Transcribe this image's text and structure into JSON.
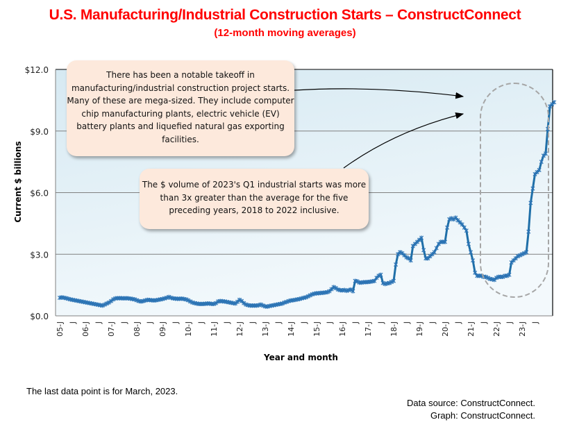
{
  "title": "U.S. Manufacturing/Industrial Construction Starts – ConstructConnect",
  "subtitle": "(12-month moving averages)",
  "note": "The last data point is for March, 2023.",
  "source_line1": "Data source: ConstructConnect.",
  "source_line2": "Graph: ConstructConnect.",
  "callouts": {
    "takeoff": "There has been a notable takeoff in manufacturing/industrial construction project starts. Many of these are mega-sized. They include computer chip manufacturing plants, electric vehicle (EV) battery plants and liquefied natural gas exporting facilities.",
    "q1": "The $ volume of 2023's Q1 industrial starts was more than 3x greater than the average for the five preceding years, 2018 to 2022 inclusive."
  },
  "colors": {
    "title": "#ff0000",
    "series": "#2e75b6",
    "callout_bg": "#fde9dc",
    "plot_bg_top": "#d6e9f2",
    "plot_bg_bottom": "#f3f9fc",
    "highlight_oval": "#a6a6a6"
  },
  "chart_data": {
    "type": "line",
    "title": "U.S. Manufacturing/Industrial Construction Starts – ConstructConnect",
    "subtitle": "(12-month moving averages)",
    "xlabel": "Year and month",
    "ylabel": "Current $ billions",
    "ylim": [
      0,
      12
    ],
    "yticks": [
      "$0.0",
      "$3.0",
      "$6.0",
      "$9.0",
      "$12.0"
    ],
    "ytick_values": [
      0,
      3,
      6,
      9,
      12
    ],
    "grid": "horizontal",
    "x_start": "2005-01",
    "x_end": "2023-03",
    "xtick_labels": [
      "05-J",
      "J",
      "06-J",
      "J",
      "07-J",
      "J",
      "08-J",
      "J",
      "09-J",
      "J",
      "10-J",
      "J",
      "11-J",
      "J",
      "12-J",
      "J",
      "13-J",
      "J",
      "14-J",
      "J",
      "15-J",
      "J",
      "16-J",
      "J",
      "17-J",
      "J",
      "18-J",
      "J",
      "19-J",
      "J",
      "20-J",
      "J",
      "21-J",
      "J",
      "22-J",
      "J",
      "23-J",
      "J"
    ],
    "series": [
      {
        "name": "12-month moving average",
        "frequency": "monthly",
        "values": [
          0.88,
          0.9,
          0.88,
          0.86,
          0.83,
          0.8,
          0.78,
          0.76,
          0.74,
          0.72,
          0.7,
          0.68,
          0.66,
          0.64,
          0.62,
          0.6,
          0.58,
          0.56,
          0.54,
          0.52,
          0.5,
          0.55,
          0.6,
          0.65,
          0.72,
          0.8,
          0.85,
          0.86,
          0.86,
          0.86,
          0.85,
          0.86,
          0.85,
          0.84,
          0.82,
          0.8,
          0.76,
          0.72,
          0.7,
          0.72,
          0.75,
          0.78,
          0.77,
          0.76,
          0.75,
          0.76,
          0.78,
          0.8,
          0.82,
          0.85,
          0.88,
          0.92,
          0.88,
          0.85,
          0.84,
          0.83,
          0.83,
          0.84,
          0.82,
          0.8,
          0.76,
          0.7,
          0.65,
          0.62,
          0.6,
          0.58,
          0.58,
          0.58,
          0.59,
          0.6,
          0.6,
          0.58,
          0.58,
          0.62,
          0.7,
          0.72,
          0.71,
          0.7,
          0.68,
          0.66,
          0.64,
          0.62,
          0.6,
          0.68,
          0.78,
          0.72,
          0.62,
          0.55,
          0.52,
          0.5,
          0.5,
          0.5,
          0.5,
          0.52,
          0.55,
          0.5,
          0.46,
          0.45,
          0.48,
          0.5,
          0.52,
          0.54,
          0.56,
          0.58,
          0.6,
          0.65,
          0.68,
          0.72,
          0.75,
          0.76,
          0.78,
          0.8,
          0.82,
          0.85,
          0.88,
          0.9,
          0.95,
          1.0,
          1.05,
          1.08,
          1.1,
          1.1,
          1.12,
          1.12,
          1.14,
          1.15,
          1.2,
          1.3,
          1.4,
          1.35,
          1.28,
          1.25,
          1.24,
          1.26,
          1.22,
          1.25,
          1.28,
          1.2,
          1.7,
          1.68,
          1.62,
          1.62,
          1.64,
          1.64,
          1.65,
          1.66,
          1.68,
          1.7,
          1.85,
          1.95,
          2.0,
          1.6,
          1.55,
          1.58,
          1.6,
          1.65,
          1.7,
          2.5,
          3.0,
          3.1,
          3.05,
          2.95,
          2.85,
          2.8,
          2.7,
          3.4,
          3.5,
          3.6,
          3.7,
          3.8,
          3.2,
          2.8,
          2.8,
          2.9,
          3.0,
          3.1,
          3.3,
          3.5,
          3.6,
          3.6,
          3.6,
          4.3,
          4.7,
          4.75,
          4.7,
          4.78,
          4.65,
          4.55,
          4.45,
          4.3,
          4.15,
          3.5,
          3.1,
          2.7,
          2.1,
          1.95,
          1.95,
          1.95,
          1.9,
          1.9,
          1.85,
          1.8,
          1.78,
          1.75,
          1.85,
          1.9,
          1.9,
          1.9,
          1.95,
          1.95,
          2.0,
          2.6,
          2.7,
          2.8,
          2.9,
          2.95,
          3.0,
          3.05,
          3.1,
          4.1,
          5.5,
          6.2,
          6.9,
          7.0,
          7.1,
          7.5,
          7.8,
          7.9,
          9.1,
          10.2,
          10.3,
          10.4
        ]
      }
    ]
  }
}
